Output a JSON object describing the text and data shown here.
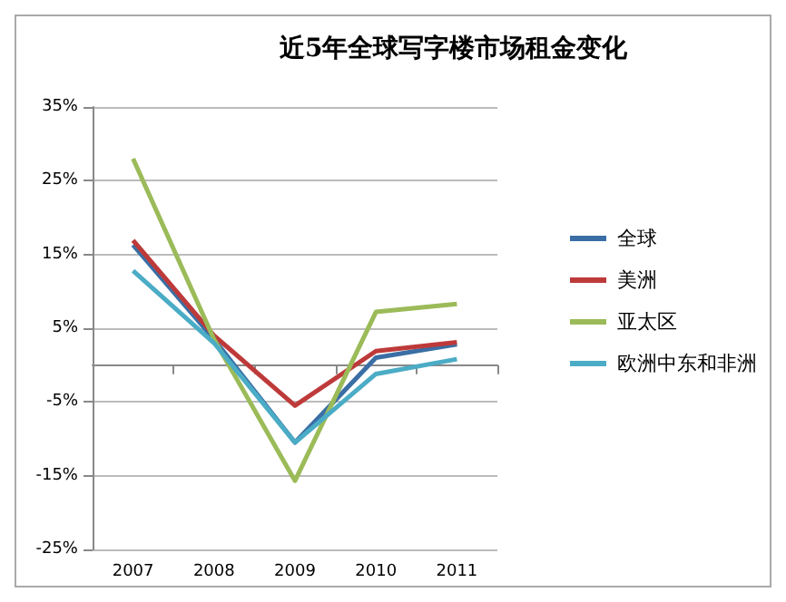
{
  "chart_data": {
    "type": "line",
    "title": "近5年全球写字楼市场租金变化",
    "categories": [
      "2007",
      "2008",
      "2009",
      "2010",
      "2011"
    ],
    "series": [
      {
        "name": "全球",
        "color": "#3a6ea5",
        "values": [
          16.3,
          3.5,
          -10.5,
          1,
          2.8
        ]
      },
      {
        "name": "美洲",
        "color": "#be3a3a",
        "values": [
          16.9,
          4,
          -5.5,
          1.9,
          3.1
        ]
      },
      {
        "name": "亚太区",
        "color": "#9bbb59",
        "values": [
          28,
          3.5,
          -15.7,
          7.2,
          8.3
        ]
      },
      {
        "name": "欧洲中东和非洲",
        "color": "#4bacc6",
        "values": [
          12.8,
          3,
          -10.5,
          -1.2,
          0.8
        ]
      }
    ],
    "ylim": [
      -25,
      35
    ],
    "yticks": [
      {
        "value": -25,
        "label": "-25%"
      },
      {
        "value": -15,
        "label": "-15%"
      },
      {
        "value": -5,
        "label": "-5%"
      },
      {
        "value": 5,
        "label": "5%"
      },
      {
        "value": 15,
        "label": "15%"
      },
      {
        "value": 25,
        "label": "25%"
      },
      {
        "value": 35,
        "label": "35%"
      }
    ],
    "grid": "y",
    "legend": "right",
    "marker": "none"
  }
}
